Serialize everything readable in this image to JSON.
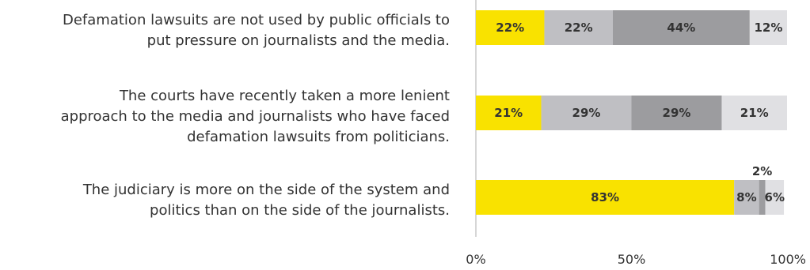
{
  "chart_data": {
    "type": "bar",
    "orientation": "horizontal",
    "stacked": true,
    "categories": [
      "Defamation lawsuits are not used by public officials to put pressure on journalists and the media.",
      "The courts have recently taken a more lenient approach to the media and journalists who have faced defamation lawsuits from politicians.",
      "The judiciary is more on the side of the system and politics than on the side of the journalists."
    ],
    "category_lines": [
      [
        "Defamation lawsuits are not used by public officials to",
        "put pressure on journalists and the media."
      ],
      [
        "The courts have recently taken a more lenient",
        "approach to the media and journalists who have faced",
        "defamation lawsuits from politicians."
      ],
      [
        "The judiciary is more on the side of the system and",
        "politics than on the side of the journalists."
      ]
    ],
    "series": [
      {
        "values": [
          22,
          21,
          83
        ],
        "labels": [
          "22%",
          "21%",
          "83%"
        ],
        "color": "#f9e200"
      },
      {
        "values": [
          22,
          29,
          8
        ],
        "labels": [
          "22%",
          "29%",
          "8%"
        ],
        "color": "#bfbfc3"
      },
      {
        "values": [
          44,
          29,
          2
        ],
        "labels": [
          "44%",
          "29%",
          "2%"
        ],
        "color": "#9c9c9f"
      },
      {
        "values": [
          12,
          21,
          6
        ],
        "labels": [
          "12%",
          "21%",
          "6%"
        ],
        "color": "#e0e0e3"
      }
    ],
    "xlim": [
      0,
      100
    ],
    "x_ticks": [
      "0%",
      "50%",
      "100%"
    ],
    "grid": false,
    "legend": "none"
  }
}
